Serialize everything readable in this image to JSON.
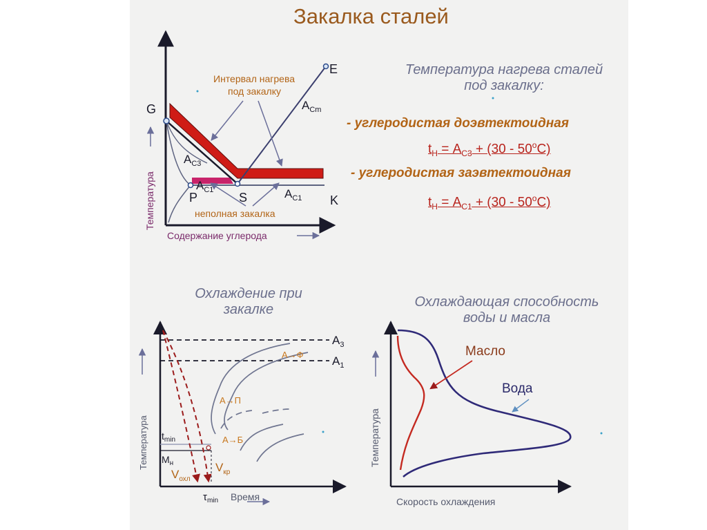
{
  "title": "Закалка сталей",
  "top_right": {
    "heading_line1": "Температура нагрева сталей",
    "heading_line2": "под закалку:",
    "bullet1": "- углеродистая доэвтектоидная",
    "formula1": {
      "t": "t",
      "t_sub": "Н",
      "eq": " = A",
      "a_sub": "С3",
      "rest": " + (30 - 50",
      "deg": "о",
      "end": "С)"
    },
    "bullet2": "- углеродистая заэвтектоидная",
    "formula2": {
      "t": "t",
      "t_sub": "Н",
      "eq": " = A",
      "a_sub": "С1",
      "rest": " + (30 - 50",
      "deg": "о",
      "end": "С)"
    }
  },
  "phase_diagram": {
    "y_axis_label": "Температура",
    "x_axis_label": "Содержание углерода",
    "point_G": "G",
    "point_E": "E",
    "point_P": "P",
    "point_S": "S",
    "point_K": "K",
    "label_acm": "A",
    "label_acm_sub": "Cm",
    "label_ac3": "A",
    "label_ac3_sub": "C3",
    "label_ac1_left": "A",
    "label_ac1_left_sub": "C1",
    "label_ac1_right": "A",
    "label_ac1_right_sub": "C1",
    "annotation_interval_line1": "Интервал нагрева",
    "annotation_interval_line2": "под закалку",
    "annotation_partial": "неполная закалка"
  },
  "cooling_diagram": {
    "heading_line1": "Охлаждение при",
    "heading_line2": "закалке",
    "y_axis_label": "Температура",
    "x_axis_label": "Время",
    "tau_min": "τ",
    "tau_min_sub": "min",
    "t_min": "t",
    "t_min_sub": "min",
    "m_n": "M",
    "m_n_sub": "н",
    "v_ohl": "V",
    "v_ohl_sub": "охл",
    "v_kr": "V",
    "v_kr_sub": "кр",
    "a3": "A",
    "a3_sub": "3",
    "a1": "A",
    "a1_sub": "1",
    "zone_af": "A→Ф",
    "zone_ap": "A→П",
    "zone_ab": "A→Б"
  },
  "cooling_capacity": {
    "heading_line1": "Охлаждающая способность",
    "heading_line2": "воды и масла",
    "y_axis_label": "Температура",
    "x_axis_label": "Скорость охлаждения",
    "label_oil": "Масло",
    "label_water": "Вода"
  },
  "colors": {
    "title": "#9a5a1e",
    "heating_band": "#cf1c16",
    "axis": "#1a1a2a",
    "curve": "#6f7590",
    "annotation": "#b26416",
    "arrow": "#6b6f9a",
    "oil": "#c42a21",
    "water": "#2f2a78"
  }
}
